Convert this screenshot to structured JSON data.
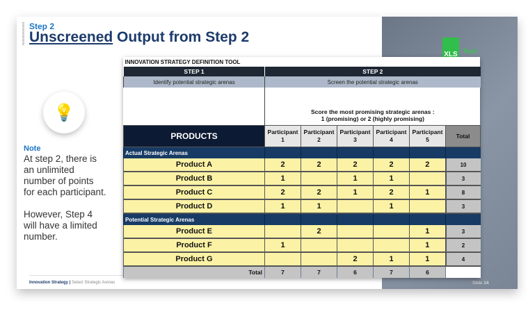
{
  "slide": {
    "step": "Step 2",
    "title_underlined": "Unscreened",
    "title_rest": " Output from Step 2",
    "xls_label": "XLS",
    "tool_label": "Tool",
    "note_label": "Note",
    "note_text_1": "At step 2, there is an unlimited number of points for each participant.",
    "note_text_2": "However, Step 4 will have a limited number.",
    "footer_bold": "Innovation Strategy |",
    "footer_rest": " Select Strategic Arenas",
    "slide_label": "Slide ",
    "slide_number": "14",
    "icon": "lightbulb-icon"
  },
  "table": {
    "title": "INNOVATION STRATEGY DEFINITION TOOL",
    "step1": "STEP 1",
    "step2": "STEP 2",
    "step1_sub": "Identify potential strategic arenas",
    "step2_sub": "Screen the potential strategic arenas",
    "instruction_1": "Score the most promising strategic arenas :",
    "instruction_2": "1 (promising) or 2 (highly promising)",
    "products_header": "PRODUCTS",
    "participants": [
      "Participant 1",
      "Participant 2",
      "Participant 3",
      "Participant 4",
      "Participant 5"
    ],
    "total_header": "Total",
    "sections": [
      {
        "label": "Actual Strategic Arenas",
        "rows": [
          {
            "name": "Product A",
            "scores": [
              "2",
              "2",
              "2",
              "2",
              "2"
            ],
            "total": "10"
          },
          {
            "name": "Product B",
            "scores": [
              "1",
              "",
              "1",
              "1",
              ""
            ],
            "total": "3"
          },
          {
            "name": "Product C",
            "scores": [
              "2",
              "2",
              "1",
              "2",
              "1"
            ],
            "total": "8"
          },
          {
            "name": "Product D",
            "scores": [
              "1",
              "1",
              "",
              "1",
              ""
            ],
            "total": "3"
          }
        ]
      },
      {
        "label": "Potential Strategic Arenas",
        "rows": [
          {
            "name": "Product E",
            "scores": [
              "",
              "2",
              "",
              "",
              "1"
            ],
            "total": "3"
          },
          {
            "name": "Product F",
            "scores": [
              "1",
              "",
              "",
              "",
              "1"
            ],
            "total": "2"
          },
          {
            "name": "Product G",
            "scores": [
              "",
              "",
              "2",
              "1",
              "1"
            ],
            "total": "4"
          }
        ]
      }
    ],
    "total_label": "Total",
    "column_totals": [
      "7",
      "7",
      "6",
      "7",
      "6"
    ]
  }
}
